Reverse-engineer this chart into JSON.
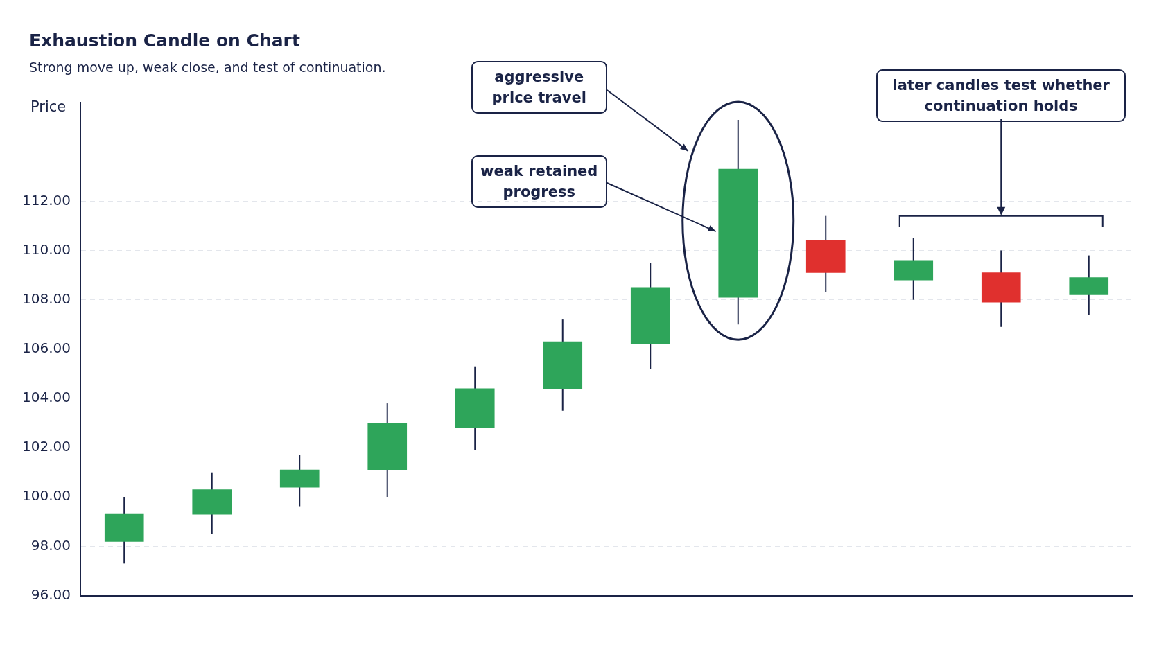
{
  "chart_data": {
    "type": "candlestick",
    "title": "Exhaustion Candle on Chart",
    "subtitle": "Strong move up, weak close, and test of continuation.",
    "ylabel": "Price",
    "categories": [
      null,
      null,
      null,
      null,
      null,
      null,
      null,
      null,
      null,
      null,
      null,
      null
    ],
    "ohlc": [
      [
        98.2,
        100.0,
        97.3,
        99.3
      ],
      [
        99.3,
        101.0,
        98.5,
        100.3
      ],
      [
        100.4,
        101.7,
        99.6,
        101.1
      ],
      [
        101.1,
        103.8,
        100.0,
        103.0
      ],
      [
        102.8,
        105.3,
        101.9,
        104.4
      ],
      [
        104.4,
        107.2,
        103.5,
        106.3
      ],
      [
        106.2,
        109.5,
        105.2,
        108.5
      ],
      [
        108.1,
        115.3,
        107.0,
        113.3
      ],
      [
        110.4,
        111.4,
        108.3,
        109.1
      ],
      [
        108.8,
        110.5,
        108.0,
        109.6
      ],
      [
        109.1,
        110.0,
        106.9,
        107.9
      ],
      [
        108.2,
        109.8,
        107.4,
        108.9
      ]
    ],
    "colors": [
      "#2ea55a",
      "#2ea55a",
      "#2ea55a",
      "#2ea55a",
      "#2ea55a",
      "#2ea55a",
      "#2ea55a",
      "#2ea55a",
      "#e0302e",
      "#2ea55a",
      "#e0302e",
      "#2ea55a"
    ],
    "ylim": [
      96,
      116
    ],
    "yticks": [
      {
        "value": 96,
        "label": "96.00"
      },
      {
        "value": 98,
        "label": "98.00"
      },
      {
        "value": 100,
        "label": "100.00"
      },
      {
        "value": 102,
        "label": "102.00"
      },
      {
        "value": 104,
        "label": "104.00"
      },
      {
        "value": 106,
        "label": "106.00"
      },
      {
        "value": 108,
        "label": "108.00"
      },
      {
        "value": 110,
        "label": "110.00"
      },
      {
        "value": 112,
        "label": "112.00"
      }
    ],
    "grid": "y",
    "legend": false,
    "annotations": [
      "aggressive price travel",
      "weak retained progress",
      "later candles test whether continuation holds"
    ]
  }
}
